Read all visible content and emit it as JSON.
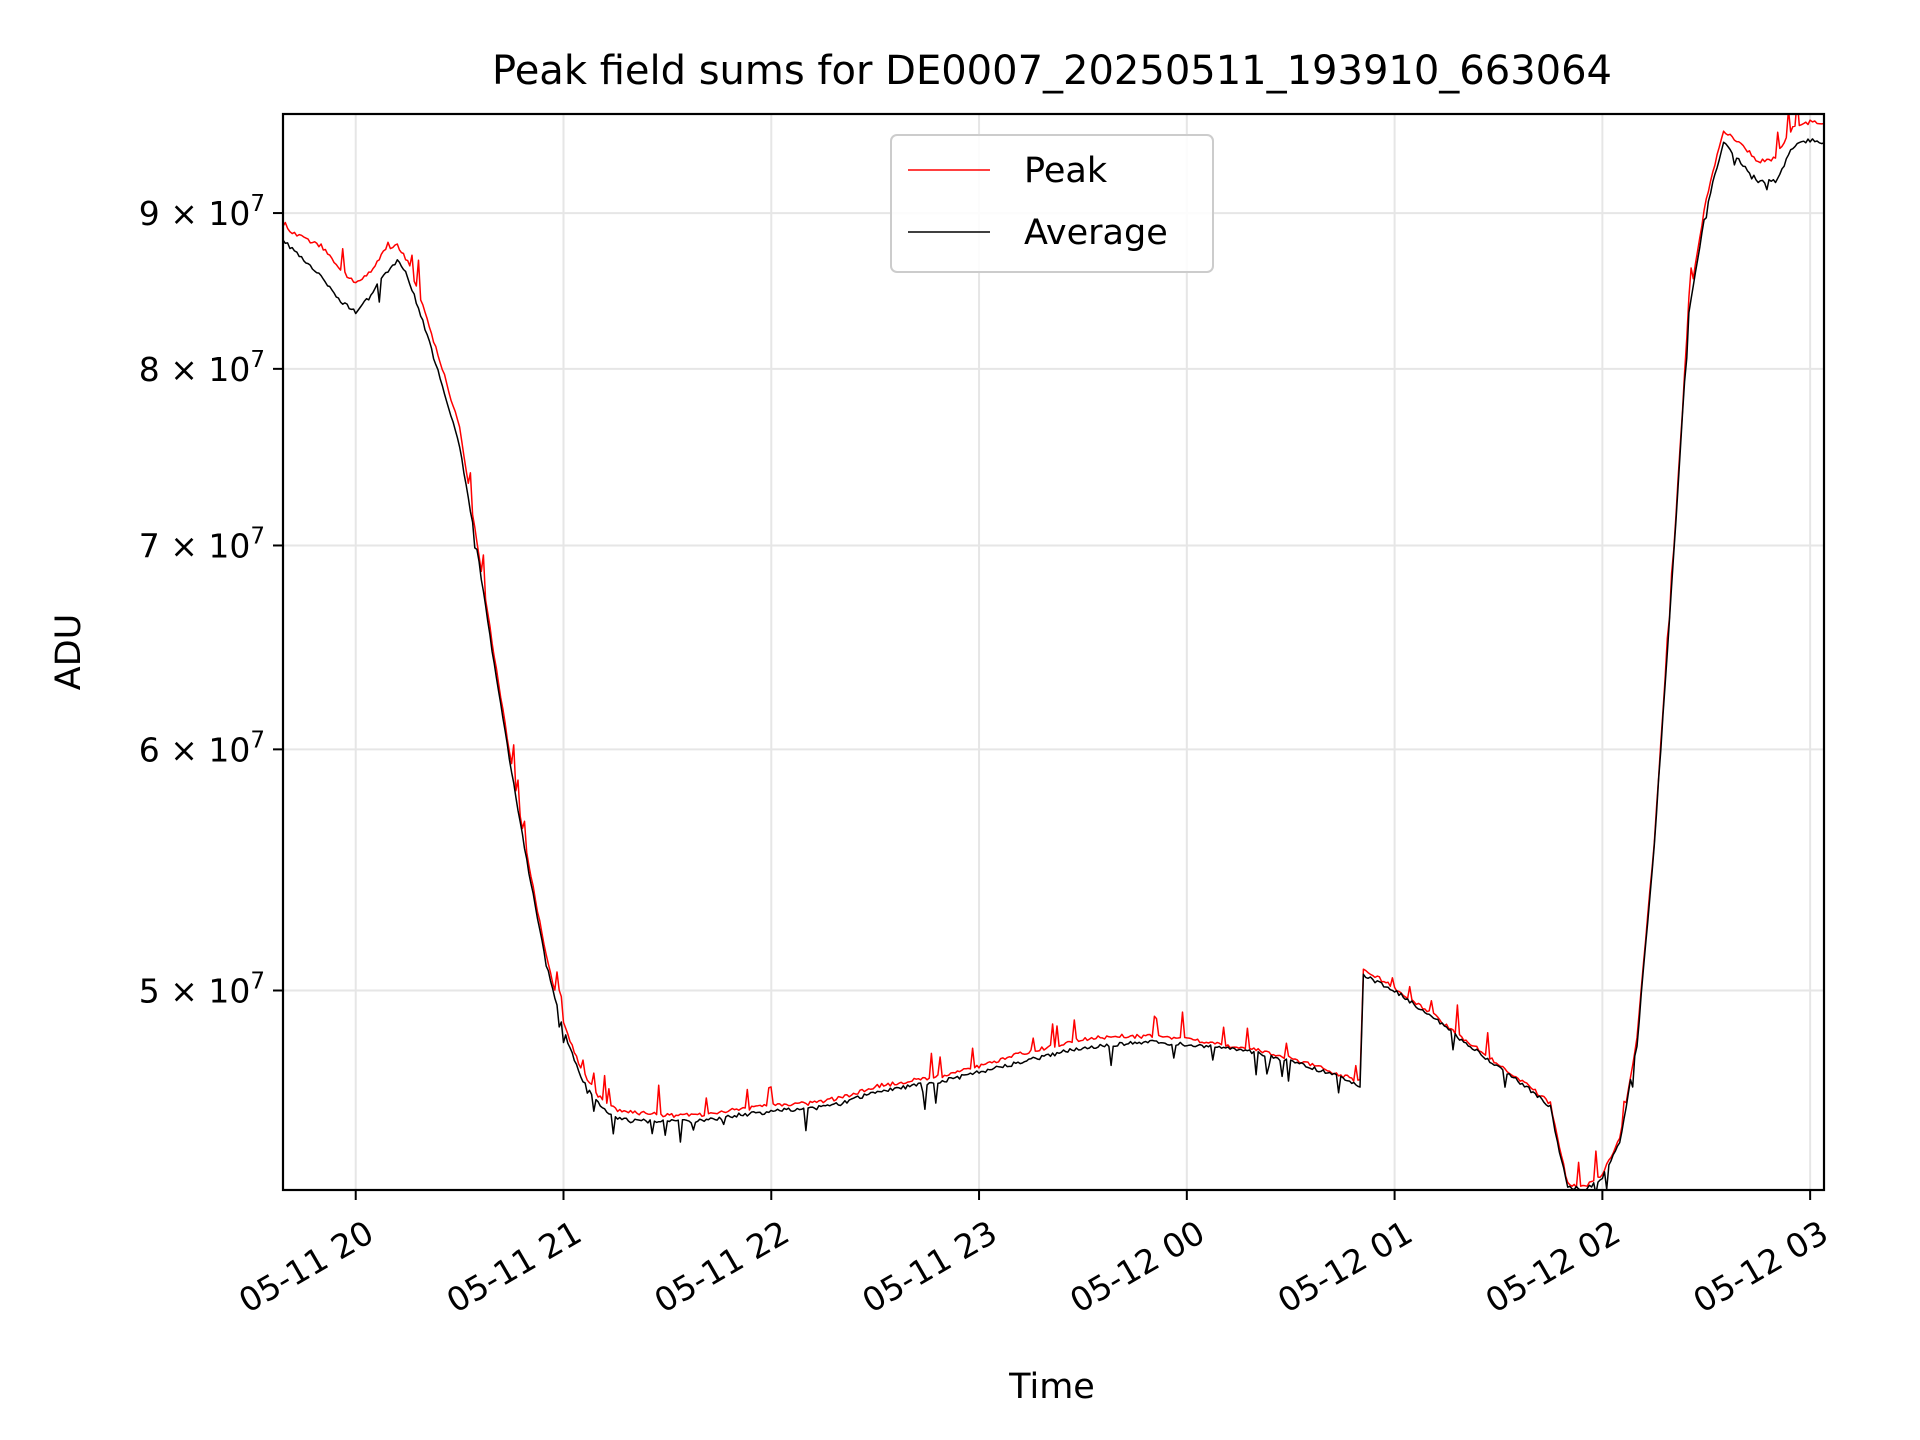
{
  "chart_data": {
    "type": "line",
    "title": "Peak field sums for DE0007_20250511_193910_663064",
    "xlabel": "Time",
    "ylabel": "ADU",
    "y_scale": "log",
    "ylim": [
      43000000,
      97000000
    ],
    "xlim": [
      "2025-05-11 19:39",
      "2025-05-12 03:04"
    ],
    "grid": true,
    "legend_position": "upper center",
    "x_ticks": [
      {
        "t": "2025-05-11 20:00",
        "label": "05-11 20"
      },
      {
        "t": "2025-05-11 21:00",
        "label": "05-11 21"
      },
      {
        "t": "2025-05-11 22:00",
        "label": "05-11 22"
      },
      {
        "t": "2025-05-11 23:00",
        "label": "05-11 23"
      },
      {
        "t": "2025-05-12 00:00",
        "label": "05-12 00"
      },
      {
        "t": "2025-05-12 01:00",
        "label": "05-12 01"
      },
      {
        "t": "2025-05-12 02:00",
        "label": "05-12 02"
      },
      {
        "t": "2025-05-12 03:00",
        "label": "05-12 03"
      }
    ],
    "y_ticks": [
      {
        "value": 50000000,
        "mant": "5",
        "exp": "7"
      },
      {
        "value": 60000000,
        "mant": "6",
        "exp": "7"
      },
      {
        "value": 70000000,
        "mant": "7",
        "exp": "7"
      },
      {
        "value": 80000000,
        "mant": "8",
        "exp": "7"
      },
      {
        "value": 90000000,
        "mant": "9",
        "exp": "7"
      }
    ],
    "tick_times_text": "× 10",
    "series": [
      {
        "name": "Peak",
        "color": "#ff0000",
        "points": [
          [
            "2025-05-11 19:39",
            89000000
          ],
          [
            "2025-05-11 19:45",
            88300000
          ],
          [
            "2025-05-11 19:50",
            87800000
          ],
          [
            "2025-05-11 19:55",
            86400000
          ],
          [
            "2025-05-11 20:00",
            85300000
          ],
          [
            "2025-05-11 20:05",
            86300000
          ],
          [
            "2025-05-11 20:08",
            87400000
          ],
          [
            "2025-05-11 20:12",
            87800000
          ],
          [
            "2025-05-11 20:15",
            86800000
          ],
          [
            "2025-05-11 20:20",
            83500000
          ],
          [
            "2025-05-11 20:25",
            80000000
          ],
          [
            "2025-05-11 20:30",
            76500000
          ],
          [
            "2025-05-11 20:35",
            70200000
          ],
          [
            "2025-05-11 20:40",
            64400000
          ],
          [
            "2025-05-11 20:45",
            59300000
          ],
          [
            "2025-05-11 20:50",
            55000000
          ],
          [
            "2025-05-11 20:55",
            51300000
          ],
          [
            "2025-05-11 21:00",
            48800000
          ],
          [
            "2025-05-11 21:05",
            47100000
          ],
          [
            "2025-05-11 21:10",
            46200000
          ],
          [
            "2025-05-11 21:15",
            45700000
          ],
          [
            "2025-05-11 21:20",
            45600000
          ],
          [
            "2025-05-11 21:30",
            45500000
          ],
          [
            "2025-05-11 21:40",
            45500000
          ],
          [
            "2025-05-11 21:50",
            45700000
          ],
          [
            "2025-05-11 21:58",
            45800000
          ],
          [
            "2025-05-11 22:05",
            45900000
          ],
          [
            "2025-05-11 22:10",
            45900000
          ],
          [
            "2025-05-11 22:20",
            46100000
          ],
          [
            "2025-05-11 22:30",
            46500000
          ],
          [
            "2025-05-11 22:40",
            46700000
          ],
          [
            "2025-05-11 22:50",
            46900000
          ],
          [
            "2025-05-11 23:00",
            47200000
          ],
          [
            "2025-05-11 23:10",
            47600000
          ],
          [
            "2025-05-11 23:20",
            47900000
          ],
          [
            "2025-05-11 23:30",
            48200000
          ],
          [
            "2025-05-11 23:40",
            48300000
          ],
          [
            "2025-05-11 23:50",
            48300000
          ],
          [
            "2025-05-12 00:00",
            48200000
          ],
          [
            "2025-05-12 00:10",
            48000000
          ],
          [
            "2025-05-12 00:20",
            47800000
          ],
          [
            "2025-05-12 00:30",
            47500000
          ],
          [
            "2025-05-12 00:40",
            47100000
          ],
          [
            "2025-05-12 00:47",
            46800000
          ],
          [
            "2025-05-12 00:50",
            46700000
          ],
          [
            "2025-05-12 00:51",
            50800000
          ],
          [
            "2025-05-12 00:55",
            50500000
          ],
          [
            "2025-05-12 01:00",
            50100000
          ],
          [
            "2025-05-12 01:10",
            49200000
          ],
          [
            "2025-05-12 01:20",
            48200000
          ],
          [
            "2025-05-12 01:30",
            47300000
          ],
          [
            "2025-05-12 01:40",
            46400000
          ],
          [
            "2025-05-12 01:45",
            45900000
          ],
          [
            "2025-05-12 01:47",
            44800000
          ],
          [
            "2025-05-12 01:50",
            43200000
          ],
          [
            "2025-05-12 01:55",
            43100000
          ],
          [
            "2025-05-12 02:00",
            43500000
          ],
          [
            "2025-05-12 02:05",
            44700000
          ],
          [
            "2025-05-12 02:10",
            48200000
          ],
          [
            "2025-05-12 02:15",
            56000000
          ],
          [
            "2025-05-12 02:20",
            68000000
          ],
          [
            "2025-05-12 02:25",
            84000000
          ],
          [
            "2025-05-12 02:30",
            91000000
          ],
          [
            "2025-05-12 02:35",
            95800000
          ],
          [
            "2025-05-12 02:40",
            94800000
          ],
          [
            "2025-05-12 02:45",
            93600000
          ],
          [
            "2025-05-12 02:50",
            93800000
          ],
          [
            "2025-05-12 02:55",
            96100000
          ],
          [
            "2025-05-12 03:00",
            96400000
          ],
          [
            "2025-05-12 03:04",
            96300000
          ]
        ]
      },
      {
        "name": "Average",
        "color": "#000000",
        "points": [
          [
            "2025-05-11 19:39",
            88200000
          ],
          [
            "2025-05-11 19:45",
            86800000
          ],
          [
            "2025-05-11 19:50",
            85800000
          ],
          [
            "2025-05-11 19:55",
            84300000
          ],
          [
            "2025-05-11 20:00",
            83500000
          ],
          [
            "2025-05-11 20:05",
            84700000
          ],
          [
            "2025-05-11 20:08",
            85900000
          ],
          [
            "2025-05-11 20:12",
            86800000
          ],
          [
            "2025-05-11 20:15",
            85800000
          ],
          [
            "2025-05-11 20:20",
            82500000
          ],
          [
            "2025-05-11 20:25",
            79000000
          ],
          [
            "2025-05-11 20:30",
            75500000
          ],
          [
            "2025-05-11 20:35",
            69800000
          ],
          [
            "2025-05-11 20:40",
            64000000
          ],
          [
            "2025-05-11 20:45",
            59000000
          ],
          [
            "2025-05-11 20:50",
            54700000
          ],
          [
            "2025-05-11 20:55",
            51000000
          ],
          [
            "2025-05-11 21:00",
            48500000
          ],
          [
            "2025-05-11 21:05",
            46800000
          ],
          [
            "2025-05-11 21:10",
            45900000
          ],
          [
            "2025-05-11 21:15",
            45400000
          ],
          [
            "2025-05-11 21:20",
            45300000
          ],
          [
            "2025-05-11 21:30",
            45300000
          ],
          [
            "2025-05-11 21:40",
            45300000
          ],
          [
            "2025-05-11 21:50",
            45500000
          ],
          [
            "2025-05-11 21:58",
            45600000
          ],
          [
            "2025-05-11 22:05",
            45700000
          ],
          [
            "2025-05-11 22:10",
            45700000
          ],
          [
            "2025-05-11 22:20",
            45900000
          ],
          [
            "2025-05-11 22:30",
            46300000
          ],
          [
            "2025-05-11 22:40",
            46500000
          ],
          [
            "2025-05-11 22:50",
            46700000
          ],
          [
            "2025-05-11 23:00",
            47000000
          ],
          [
            "2025-05-11 23:10",
            47300000
          ],
          [
            "2025-05-11 23:20",
            47600000
          ],
          [
            "2025-05-11 23:30",
            47900000
          ],
          [
            "2025-05-11 23:40",
            48000000
          ],
          [
            "2025-05-11 23:50",
            48100000
          ],
          [
            "2025-05-12 00:00",
            48000000
          ],
          [
            "2025-05-12 00:10",
            47900000
          ],
          [
            "2025-05-12 00:20",
            47700000
          ],
          [
            "2025-05-12 00:30",
            47400000
          ],
          [
            "2025-05-12 00:40",
            47000000
          ],
          [
            "2025-05-12 00:47",
            46700000
          ],
          [
            "2025-05-12 00:50",
            46500000
          ],
          [
            "2025-05-12 00:51",
            50600000
          ],
          [
            "2025-05-12 00:55",
            50300000
          ],
          [
            "2025-05-12 01:00",
            50000000
          ],
          [
            "2025-05-12 01:10",
            49100000
          ],
          [
            "2025-05-12 01:20",
            48100000
          ],
          [
            "2025-05-12 01:30",
            47200000
          ],
          [
            "2025-05-12 01:40",
            46300000
          ],
          [
            "2025-05-12 01:45",
            45800000
          ],
          [
            "2025-05-12 01:47",
            44600000
          ],
          [
            "2025-05-12 01:50",
            43100000
          ],
          [
            "2025-05-12 01:55",
            43000000
          ],
          [
            "2025-05-12 02:00",
            43400000
          ],
          [
            "2025-05-12 02:05",
            44600000
          ],
          [
            "2025-05-12 02:10",
            48000000
          ],
          [
            "2025-05-12 02:15",
            55800000
          ],
          [
            "2025-05-12 02:20",
            67800000
          ],
          [
            "2025-05-12 02:25",
            83500000
          ],
          [
            "2025-05-12 02:30",
            90300000
          ],
          [
            "2025-05-12 02:35",
            95000000
          ],
          [
            "2025-05-12 02:40",
            93500000
          ],
          [
            "2025-05-12 02:45",
            92200000
          ],
          [
            "2025-05-12 02:50",
            92200000
          ],
          [
            "2025-05-12 02:55",
            94600000
          ],
          [
            "2025-05-12 03:00",
            95100000
          ],
          [
            "2025-05-12 03:04",
            94900000
          ]
        ]
      }
    ]
  }
}
